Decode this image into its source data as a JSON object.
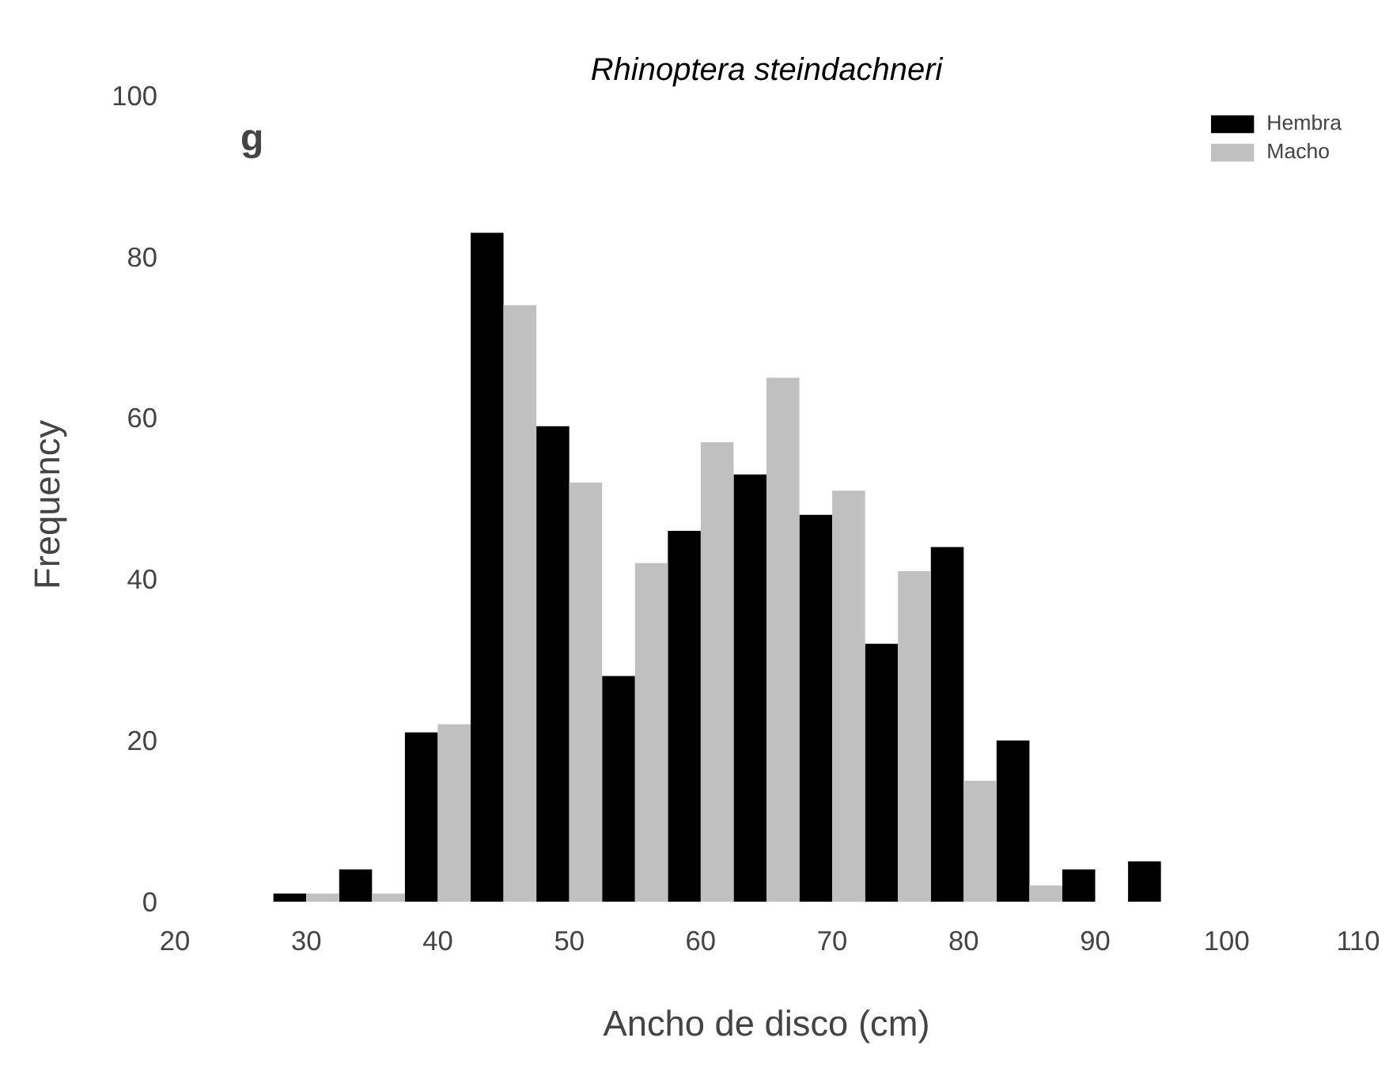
{
  "chart_data": {
    "type": "bar",
    "title": "Rhinoptera steindachneri",
    "xlabel": "Ancho de disco (cm)",
    "ylabel": "Frequency",
    "annotations": [
      "g"
    ],
    "x": [
      30,
      35,
      40,
      45,
      50,
      55,
      60,
      65,
      70,
      75,
      80,
      85,
      90,
      95
    ],
    "series": [
      {
        "name": "Hembra",
        "color": "#000000",
        "values": [
          1,
          4,
          21,
          83,
          59,
          28,
          46,
          53,
          48,
          32,
          44,
          20,
          4,
          5
        ]
      },
      {
        "name": "Macho",
        "color": "#c0c0c0",
        "values": [
          1,
          1,
          22,
          74,
          52,
          42,
          57,
          65,
          51,
          41,
          15,
          2,
          0,
          0
        ]
      }
    ],
    "xlim": [
      20,
      110
    ],
    "xticks": [
      20,
      30,
      40,
      50,
      60,
      70,
      80,
      90,
      100,
      110
    ],
    "ylim": [
      0,
      100
    ],
    "yticks": [
      0,
      20,
      40,
      60,
      80,
      100
    ],
    "grid": false,
    "legend": "top right"
  }
}
